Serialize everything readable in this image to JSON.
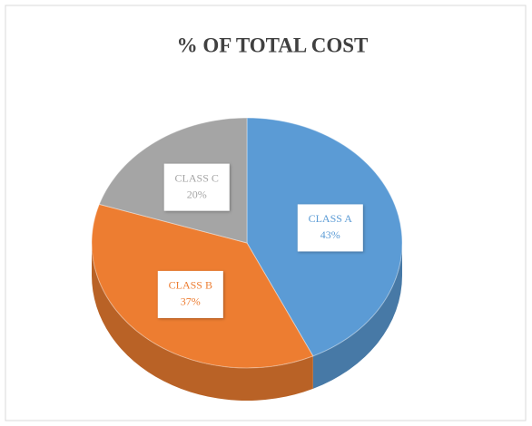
{
  "chart_data": {
    "type": "pie",
    "title": "% OF TOTAL COST",
    "categories": [
      "CLASS A",
      "CLASS B",
      "CLASS C"
    ],
    "values": [
      43,
      37,
      20
    ],
    "value_labels": [
      "43%",
      "37%",
      "20%"
    ],
    "colors": [
      "#5b9bd5",
      "#ed7d31",
      "#a5a5a5"
    ]
  }
}
